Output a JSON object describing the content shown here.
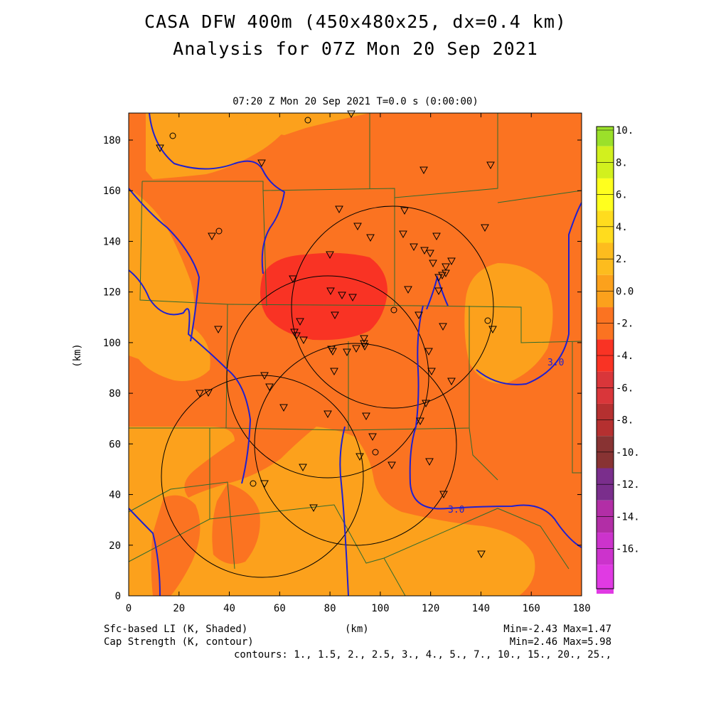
{
  "title_line1": "CASA DFW 400m (450x480x25, dx=0.4 km)",
  "title_line2": "Analysis for 07Z Mon 20 Sep 2021",
  "panel_subtitle": "07:20 Z Mon 20 Sep 2021   T=0.0 s (0:00:00)",
  "x_axis_label": "(km)",
  "y_axis_label": "(km)",
  "x_ticks": [
    "0",
    "20",
    "40",
    "60",
    "80",
    "100",
    "120",
    "140",
    "160",
    "180"
  ],
  "y_ticks": [
    "0",
    "20",
    "40",
    "60",
    "80",
    "100",
    "120",
    "140",
    "160",
    "180"
  ],
  "colorbar": {
    "labels": [
      "10.",
      "8.",
      "6.",
      "4.",
      "2.",
      "0.0",
      "-2.",
      "-4.",
      "-6.",
      "-8.",
      "-10.",
      "-12.",
      "-14.",
      "-16."
    ],
    "colors": [
      "#9be02a",
      "#d2f01e",
      "#ffff1e",
      "#ffdc1e",
      "#fdbc1e",
      "#fca11c",
      "#fb7321",
      "#f93324",
      "#d9363a",
      "#b53030",
      "#883333",
      "#7a2e8c",
      "#b22ea6",
      "#cc33cc",
      "#e03ae3"
    ]
  },
  "shading": {
    "class_1": "#fca11c",
    "class_2": "#fb7321",
    "class_3": "#f93324"
  },
  "contour_label_1": "3.0",
  "contour_label_2": "3.0",
  "footer": {
    "field1": "Sfc-based LI (K, Shaded)",
    "field2": "Cap Strength (K, contour)",
    "xunit": "(km)",
    "minmax1": "Min=-2.43 Max=1.47",
    "minmax2": "Min=2.46 Max=5.98",
    "contours": "contours: 1., 1.5, 2., 2.5, 3., 4., 5., 7., 10., 15., 20., 25.,"
  }
}
